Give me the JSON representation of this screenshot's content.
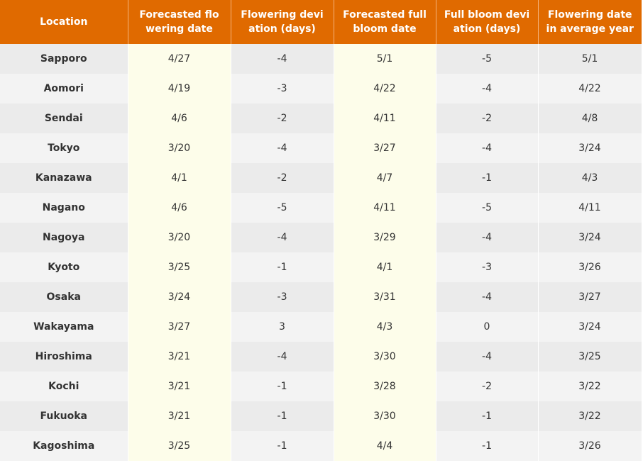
{
  "table": {
    "header": [
      "Location",
      "Forecasted flowering date",
      "Flowering deviation (days)",
      "Forecasted full bloom date",
      "Full bloom deviation (days)",
      "Flowering date in average year"
    ],
    "rows": [
      [
        "Sapporo",
        "4/27",
        -4,
        "5/1",
        -5,
        "5/1"
      ],
      [
        "Aomori",
        "4/19",
        -3,
        "4/22",
        -4,
        "4/22"
      ],
      [
        "Sendai",
        "4/6",
        -2,
        "4/11",
        -2,
        "4/8"
      ],
      [
        "Tokyo",
        "3/20",
        -4,
        "3/27",
        -4,
        "3/24"
      ],
      [
        "Kanazawa",
        "4/1",
        -2,
        "4/7",
        -1,
        "4/3"
      ],
      [
        "Nagano",
        "4/6",
        -5,
        "4/11",
        -5,
        "4/11"
      ],
      [
        "Nagoya",
        "3/20",
        -4,
        "3/29",
        -4,
        "3/24"
      ],
      [
        "Kyoto",
        "3/25",
        -1,
        "4/1",
        -3,
        "3/26"
      ],
      [
        "Osaka",
        "3/24",
        -3,
        "3/31",
        -4,
        "3/27"
      ],
      [
        "Wakayama",
        "3/27",
        3,
        "4/3",
        0,
        "3/24"
      ],
      [
        "Hiroshima",
        "3/21",
        -4,
        "3/30",
        -4,
        "3/25"
      ],
      [
        "Kochi",
        "3/21",
        -1,
        "3/28",
        -2,
        "3/22"
      ],
      [
        "Fukuoka",
        "3/21",
        -1,
        "3/30",
        -1,
        "3/22"
      ],
      [
        "Kagoshima",
        "3/25",
        -1,
        "4/4",
        -1,
        "3/26"
      ]
    ]
  }
}
